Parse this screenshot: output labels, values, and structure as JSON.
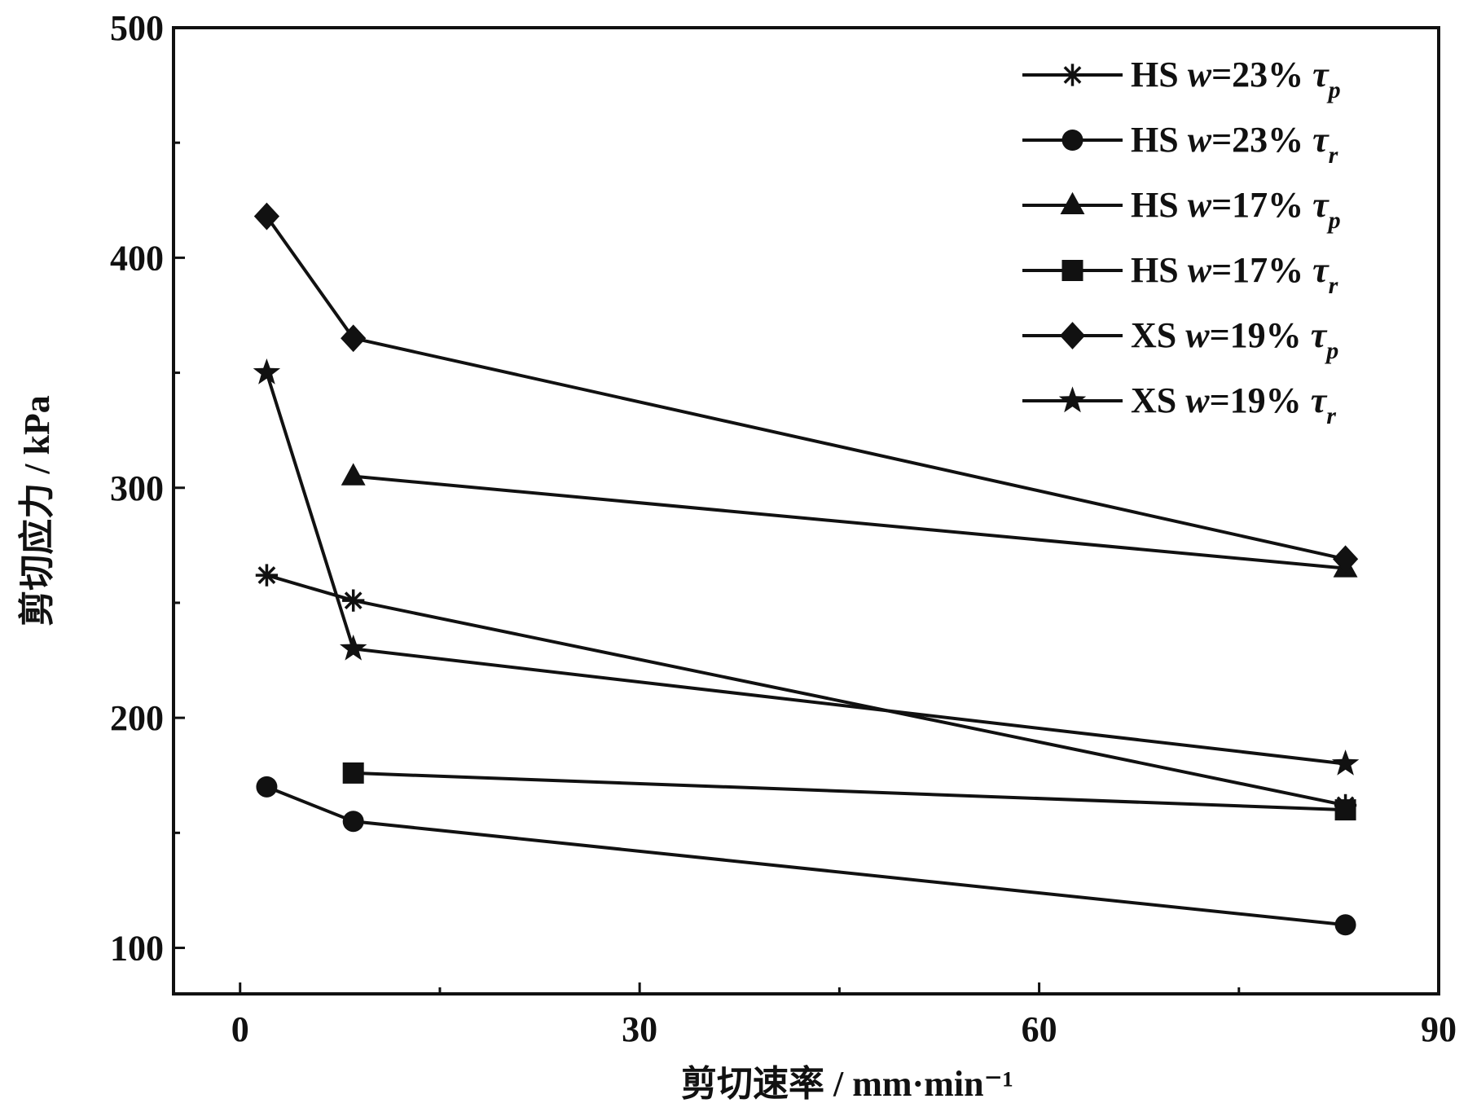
{
  "chart_data": {
    "type": "line",
    "xlabel": "剪切速率 / mm·min⁻¹",
    "ylabel": "剪切应力 / kPa",
    "xlim": [
      -5,
      90
    ],
    "ylim": [
      80,
      500
    ],
    "xticks": [
      0,
      30,
      60,
      90
    ],
    "yticks": [
      100,
      200,
      300,
      400,
      500
    ],
    "grid": false,
    "legend_position": "top-right",
    "series": [
      {
        "name": "HS w=23% τp",
        "label_parts": {
          "soil": "HS",
          "var": "w",
          "eq": "=23%",
          "tau": "τ",
          "sub": "p"
        },
        "marker": "asterisk",
        "x": [
          2,
          8.5,
          83
        ],
        "y": [
          262,
          251,
          162
        ]
      },
      {
        "name": "HS w=23% τr",
        "label_parts": {
          "soil": "HS",
          "var": "w",
          "eq": "=23%",
          "tau": "τ",
          "sub": "r"
        },
        "marker": "circle",
        "x": [
          2,
          8.5,
          83
        ],
        "y": [
          170,
          155,
          110
        ]
      },
      {
        "name": "HS w=17% τp",
        "label_parts": {
          "soil": "HS",
          "var": "w",
          "eq": "=17%",
          "tau": "τ",
          "sub": "p"
        },
        "marker": "triangle",
        "x": [
          8.5,
          83
        ],
        "y": [
          305,
          265
        ]
      },
      {
        "name": "HS w=17% τr",
        "label_parts": {
          "soil": "HS",
          "var": "w",
          "eq": "=17%",
          "tau": "τ",
          "sub": "r"
        },
        "marker": "square",
        "x": [
          8.5,
          83
        ],
        "y": [
          176,
          160
        ]
      },
      {
        "name": "XS w=19% τp",
        "label_parts": {
          "soil": "XS",
          "var": "w",
          "eq": "=19%",
          "tau": "τ",
          "sub": "p"
        },
        "marker": "diamond",
        "x": [
          2,
          8.5,
          83
        ],
        "y": [
          418,
          365,
          269
        ]
      },
      {
        "name": "XS w=19% τr",
        "label_parts": {
          "soil": "XS",
          "var": "w",
          "eq": "=19%",
          "tau": "τ",
          "sub": "r"
        },
        "marker": "star",
        "x": [
          2,
          8.5,
          83
        ],
        "y": [
          350,
          230,
          180
        ]
      }
    ]
  }
}
